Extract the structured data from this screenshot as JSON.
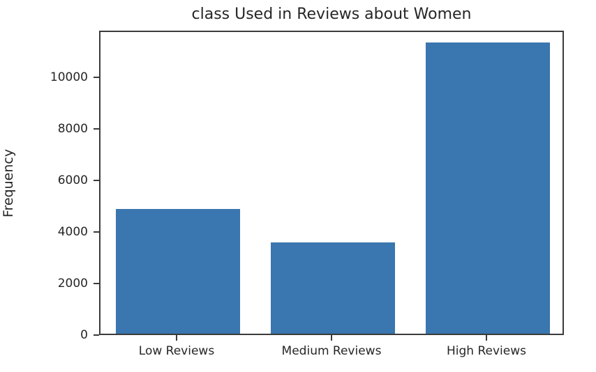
{
  "chart_data": {
    "type": "bar",
    "title": "class Used in Reviews about Women",
    "xlabel": "",
    "ylabel": "Frequency",
    "categories": [
      "Low Reviews",
      "Medium Reviews",
      "High Reviews"
    ],
    "values": [
      4840,
      3540,
      11300
    ],
    "yticks": [
      0,
      2000,
      4000,
      6000,
      8000,
      10000
    ],
    "ylim": [
      0,
      11800
    ],
    "bar_color": "#3a76af",
    "axis_color": "#3b3b3b",
    "text_color": "#262626",
    "grid": false,
    "legend_position": "none",
    "bar_width_fraction": 0.8
  }
}
